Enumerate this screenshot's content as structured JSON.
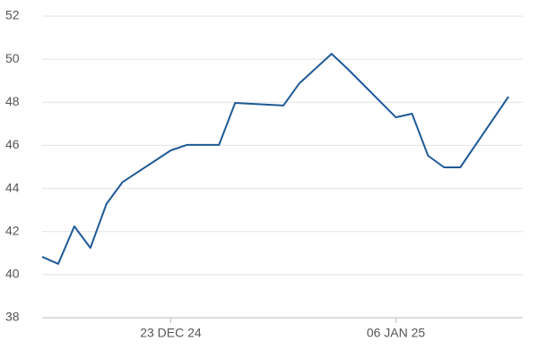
{
  "chart_data": {
    "type": "line",
    "x": [
      "2024-12-15",
      "2024-12-16",
      "2024-12-17",
      "2024-12-18",
      "2024-12-19",
      "2024-12-20",
      "2024-12-23",
      "2024-12-24",
      "2024-12-26",
      "2024-12-27",
      "2024-12-30",
      "2024-12-31",
      "2025-01-02",
      "2025-01-03",
      "2025-01-06",
      "2025-01-07",
      "2025-01-08",
      "2025-01-09",
      "2025-01-10",
      "2025-01-13"
    ],
    "series": [
      {
        "color": "#1f5a96",
        "values": [
          40.83,
          40.5,
          42.24,
          41.24,
          43.28,
          44.3,
          45.77,
          46.02,
          46.02,
          47.97,
          47.85,
          48.88,
          50.25,
          49.55,
          47.3,
          47.47,
          45.52,
          44.98,
          44.98,
          48.26
        ]
      }
    ],
    "xlim": [
      "2024-12-15",
      "2025-01-14"
    ],
    "xticks": [
      {
        "value": "2024-12-23",
        "label": "23 DEC 24"
      },
      {
        "value": "2025-01-06",
        "label": "06 JAN 25"
      }
    ],
    "ylim": [
      38,
      52
    ],
    "yticks": [
      38,
      40,
      42,
      44,
      46,
      48,
      50,
      52
    ],
    "grid": true
  }
}
